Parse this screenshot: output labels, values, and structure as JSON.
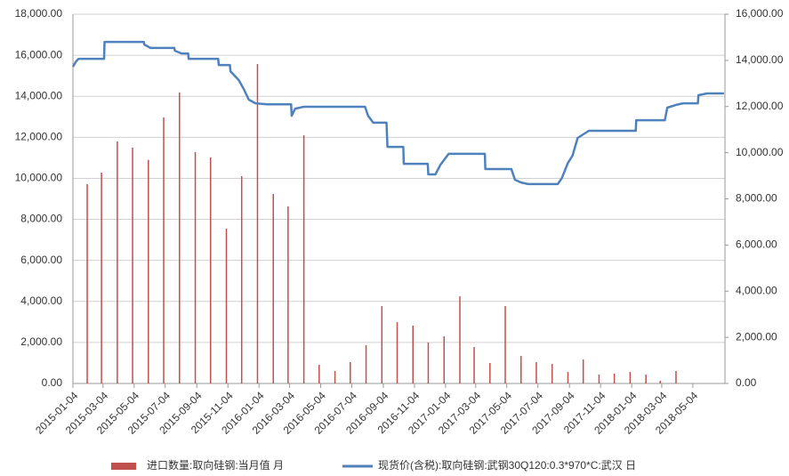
{
  "chart_data": {
    "type": "combo",
    "xlim": [
      "2015-01-04",
      "2018-07-06"
    ],
    "xticks": [
      "2015-01-04",
      "2015-03-04",
      "2015-05-04",
      "2015-07-04",
      "2015-09-04",
      "2015-11-04",
      "2016-01-04",
      "2016-03-04",
      "2016-05-04",
      "2016-07-04",
      "2016-09-04",
      "2016-11-04",
      "2017-01-04",
      "2017-03-04",
      "2017-05-04",
      "2017-07-04",
      "2017-09-04",
      "2017-11-04",
      "2018-01-04",
      "2018-03-04",
      "2018-05-04"
    ],
    "ylim": [
      0,
      18000
    ],
    "yticks": [
      {
        "value": 0,
        "label": "0.00"
      },
      {
        "value": 2000,
        "label": "2,000.00"
      },
      {
        "value": 4000,
        "label": "4,000.00"
      },
      {
        "value": 6000,
        "label": "6,000.00"
      },
      {
        "value": 8000,
        "label": "8,000.00"
      },
      {
        "value": 10000,
        "label": "10,000.00"
      },
      {
        "value": 12000,
        "label": "12,000.00"
      },
      {
        "value": 14000,
        "label": "14,000.00"
      },
      {
        "value": 16000,
        "label": "16,000.00"
      },
      {
        "value": 18000,
        "label": "18,000.00"
      }
    ],
    "y2lim": [
      0,
      16000
    ],
    "y2ticks": [
      {
        "value": 0,
        "label": "0.00"
      },
      {
        "value": 2000,
        "label": "2,000.00"
      },
      {
        "value": 4000,
        "label": "4,000.00"
      },
      {
        "value": 6000,
        "label": "6,000.00"
      },
      {
        "value": 8000,
        "label": "8,000.00"
      },
      {
        "value": 10000,
        "label": "10,000.00"
      },
      {
        "value": 12000,
        "label": "12,000.00"
      },
      {
        "value": 14000,
        "label": "14,000.00"
      },
      {
        "value": 16000,
        "label": "16,000.00"
      }
    ],
    "grid": true,
    "legend": "bottom",
    "series": [
      {
        "name": "进口数量:取向硅钢:当月值 月",
        "type": "bar",
        "color": "#c0504d",
        "x": [
          "2015-02",
          "2015-03",
          "2015-04",
          "2015-05",
          "2015-06",
          "2015-07",
          "2015-08",
          "2015-09",
          "2015-10",
          "2015-11",
          "2015-12",
          "2016-01",
          "2016-02",
          "2016-03",
          "2016-04",
          "2016-05",
          "2016-06",
          "2016-07",
          "2016-08",
          "2016-09",
          "2016-10",
          "2016-11",
          "2016-12",
          "2017-01",
          "2017-02",
          "2017-03",
          "2017-04",
          "2017-05",
          "2017-06",
          "2017-07",
          "2017-08",
          "2017-09",
          "2017-10",
          "2017-11",
          "2017-12",
          "2018-01",
          "2018-02",
          "2018-03",
          "2018-04"
        ],
        "values": [
          9720,
          10280,
          11800,
          11500,
          10900,
          12970,
          14190,
          11280,
          11020,
          7550,
          10110,
          15570,
          9240,
          8630,
          12100,
          910,
          610,
          1040,
          1870,
          3770,
          2990,
          2820,
          2000,
          2300,
          4250,
          1780,
          1000,
          3770,
          1340,
          1040,
          950,
          560,
          1170,
          430,
          480,
          560,
          430,
          130,
          610
        ]
      },
      {
        "name": "现货价(含税):取向硅钢:武钢30Q120:0.3*970*C:武汉 日",
        "type": "line",
        "axis": "y2",
        "color": "#4f81bd",
        "x": [
          "2015-01-04",
          "2015-01-10",
          "2015-01-15",
          "2015-03-06",
          "2015-03-07",
          "2015-05-23",
          "2015-05-24",
          "2015-06-05",
          "2015-07-22",
          "2015-07-23",
          "2015-08-05",
          "2015-08-18",
          "2015-08-19",
          "2015-10-16",
          "2015-10-17",
          "2015-11-08",
          "2015-11-09",
          "2015-11-25",
          "2015-12-05",
          "2015-12-15",
          "2015-12-28",
          "2016-01-20",
          "2016-03-07",
          "2016-03-08",
          "2016-03-15",
          "2016-04-01",
          "2016-07-30",
          "2016-08-05",
          "2016-08-15",
          "2016-09-10",
          "2016-09-12",
          "2016-10-13",
          "2016-10-14",
          "2016-11-30",
          "2016-12-01",
          "2016-12-15",
          "2016-12-25",
          "2017-01-10",
          "2017-03-22",
          "2017-03-23",
          "2017-05-13",
          "2017-05-20",
          "2017-06-01",
          "2017-06-15",
          "2017-08-12",
          "2017-08-20",
          "2017-09-01",
          "2017-09-10",
          "2017-09-20",
          "2017-10-12",
          "2018-01-12",
          "2018-01-13",
          "2018-03-10",
          "2018-03-15",
          "2018-04-01",
          "2018-04-15",
          "2018-05-14",
          "2018-05-15",
          "2018-06-01",
          "2018-07-04"
        ],
        "values": [
          13725,
          13950,
          14070,
          14070,
          14800,
          14800,
          14690,
          14540,
          14540,
          14420,
          14300,
          14300,
          14070,
          14070,
          13800,
          13800,
          13530,
          13150,
          12760,
          12300,
          12140,
          12100,
          12100,
          11600,
          11910,
          11990,
          11990,
          11600,
          11300,
          11300,
          10250,
          10250,
          9520,
          9520,
          9060,
          9060,
          9480,
          9950,
          9950,
          9290,
          9290,
          8830,
          8710,
          8640,
          8640,
          8900,
          9560,
          9870,
          10640,
          10950,
          10950,
          11410,
          11410,
          11950,
          12070,
          12140,
          12140,
          12490,
          12570,
          12570
        ]
      }
    ]
  }
}
